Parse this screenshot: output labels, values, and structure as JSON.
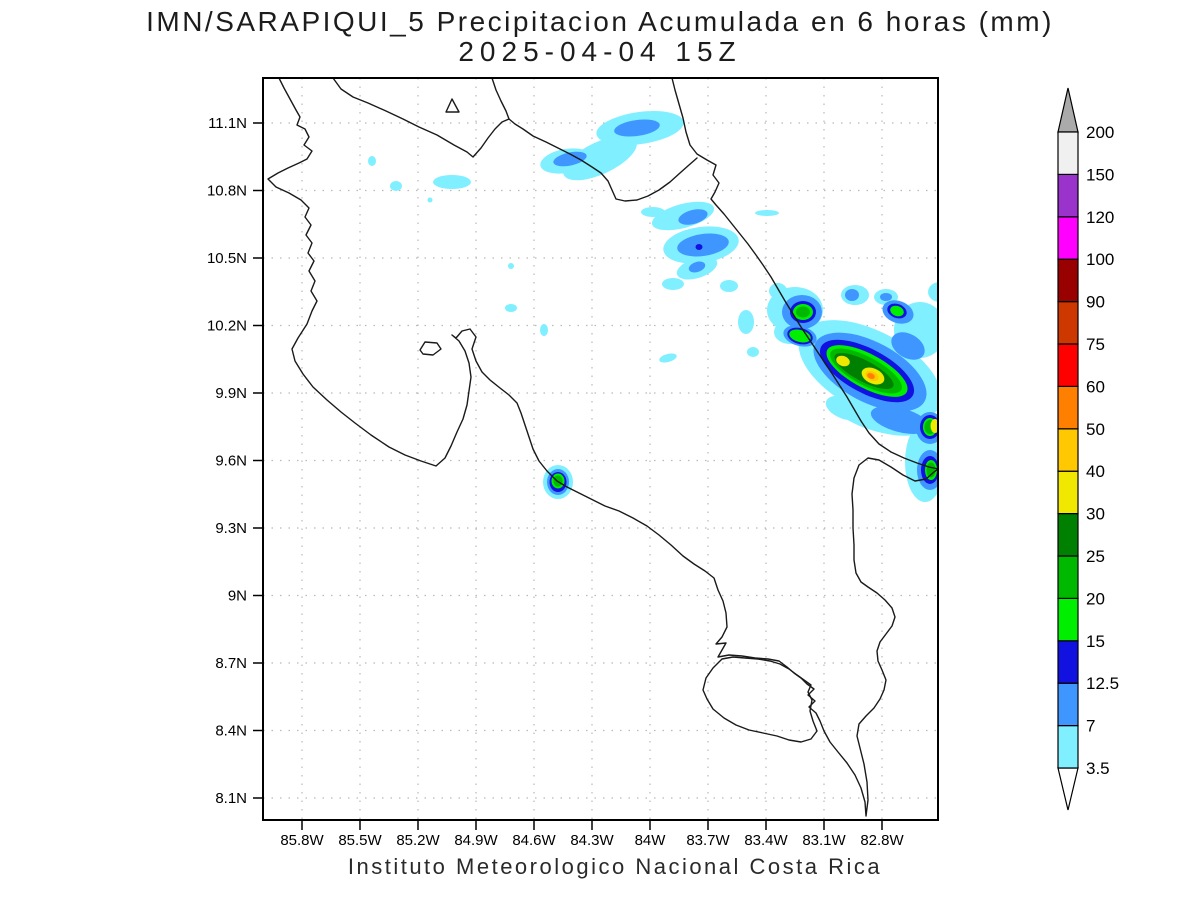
{
  "title": {
    "line1": "IMN/SARAPIQUI_5 Precipitacion Acumulada en 6 horas (mm)",
    "line2": "2025-04-04 15Z"
  },
  "footer": "Instituto Meteorologico Nacional Costa Rica",
  "axes": {
    "lat_ticks": [
      {
        "label": "11.1N",
        "value": 11.1
      },
      {
        "label": "10.8N",
        "value": 10.8
      },
      {
        "label": "10.5N",
        "value": 10.5
      },
      {
        "label": "10.2N",
        "value": 10.2
      },
      {
        "label": "9.9N",
        "value": 9.9
      },
      {
        "label": "9.6N",
        "value": 9.6
      },
      {
        "label": "9.3N",
        "value": 9.3
      },
      {
        "label": "9N",
        "value": 9.0
      },
      {
        "label": "8.7N",
        "value": 8.7
      },
      {
        "label": "8.4N",
        "value": 8.4
      },
      {
        "label": "8.1N",
        "value": 8.1
      }
    ],
    "lon_ticks": [
      {
        "label": "85.8W",
        "value": 85.8
      },
      {
        "label": "85.5W",
        "value": 85.5
      },
      {
        "label": "85.2W",
        "value": 85.2
      },
      {
        "label": "84.9W",
        "value": 84.9
      },
      {
        "label": "84.6W",
        "value": 84.6
      },
      {
        "label": "84.3W",
        "value": 84.3
      },
      {
        "label": "84W",
        "value": 84.0
      },
      {
        "label": "83.7W",
        "value": 83.7
      },
      {
        "label": "83.4W",
        "value": 83.4
      },
      {
        "label": "83.1W",
        "value": 83.1
      },
      {
        "label": "82.8W",
        "value": 82.8
      }
    ]
  },
  "colorbar": {
    "levels": [
      "3.5",
      "7",
      "12.5",
      "15",
      "20",
      "25",
      "30",
      "40",
      "50",
      "60",
      "75",
      "90",
      "100",
      "120",
      "150",
      "200"
    ],
    "colors": [
      "#80efff",
      "#4096ff",
      "#1212e0",
      "#00ee00",
      "#00b800",
      "#008000",
      "#f0e800",
      "#ffc800",
      "#ff8000",
      "#ff0000",
      "#cd3700",
      "#990000",
      "#ff00ff",
      "#9933cc",
      "#f0f0f0"
    ],
    "arrow_top": "#aaaaaa",
    "arrow_bottom": "#ffffff"
  },
  "palette": {
    "cyan": "#80efff",
    "light_blue": "#4096ff",
    "blue": "#1212e0",
    "green_bright": "#00ee00",
    "green": "#00b800",
    "green_dark": "#008000",
    "yellow": "#f0e800",
    "gold": "#ffc800",
    "orange": "#ff8000"
  }
}
